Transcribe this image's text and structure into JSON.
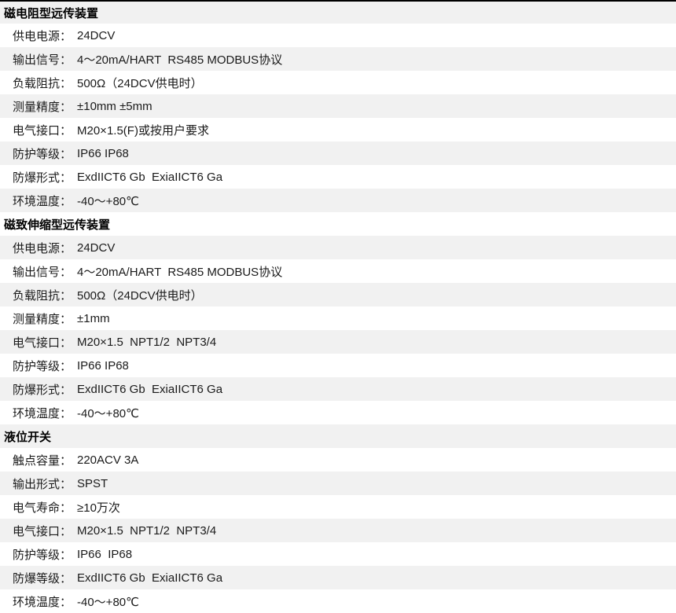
{
  "colors": {
    "stripe_bg": "#f1f1f1",
    "row_bg": "#ffffff",
    "text": "#1a1a1a",
    "title_text": "#000000",
    "top_border": "#000000"
  },
  "sections": [
    {
      "title": "磁电阻型远传装置",
      "rows": [
        {
          "label": "供电电源：",
          "value": "24DCV"
        },
        {
          "label": "输出信号：",
          "value": "4～20mA/HART  RS485 MODBUS协议"
        },
        {
          "label": "负载阻抗：",
          "value": "500Ω（24DCV供电时）"
        },
        {
          "label": "测量精度：",
          "value": "±10mm ±5mm"
        },
        {
          "label": "电气接口：",
          "value": "M20×1.5(F)或按用户要求"
        },
        {
          "label": "防护等级：",
          "value": "IP66 IP68"
        },
        {
          "label": "防爆形式：",
          "value": "ExdIICT6 Gb  ExiaIICT6 Ga"
        },
        {
          "label": "环境温度：",
          "value": "-40～+80℃"
        }
      ]
    },
    {
      "title": "磁致伸缩型远传装置",
      "rows": [
        {
          "label": "供电电源：",
          "value": "24DCV"
        },
        {
          "label": "输出信号：",
          "value": "4～20mA/HART  RS485 MODBUS协议"
        },
        {
          "label": "负载阻抗：",
          "value": "500Ω（24DCV供电时）"
        },
        {
          "label": "测量精度：",
          "value": "±1mm"
        },
        {
          "label": "电气接口：",
          "value": "M20×1.5  NPT1/2  NPT3/4"
        },
        {
          "label": "防护等级：",
          "value": "IP66 IP68"
        },
        {
          "label": "防爆形式：",
          "value": "ExdIICT6 Gb  ExiaIICT6 Ga"
        },
        {
          "label": "环境温度：",
          "value": "-40～+80℃"
        }
      ]
    },
    {
      "title": "液位开关",
      "rows": [
        {
          "label": "触点容量：",
          "value": "220ACV 3A"
        },
        {
          "label": "输出形式：",
          "value": "SPST"
        },
        {
          "label": "电气寿命：",
          "value": "≥10万次"
        },
        {
          "label": "电气接口：",
          "value": "M20×1.5  NPT1/2  NPT3/4"
        },
        {
          "label": "防护等级：",
          "value": "IP66  IP68"
        },
        {
          "label": "防爆等级：",
          "value": "ExdIICT6 Gb  ExiaIICT6 Ga"
        },
        {
          "label": "环境温度：",
          "value": "-40～+80℃"
        }
      ]
    }
  ]
}
